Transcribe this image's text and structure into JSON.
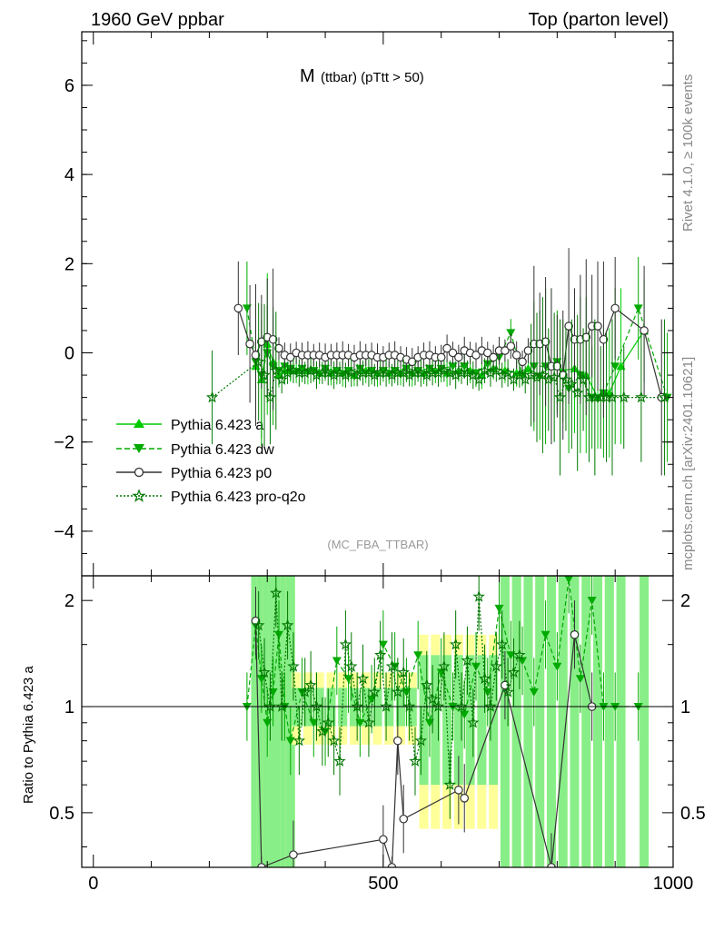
{
  "header": {
    "left": "1960 GeV ppbar",
    "right": "Top (parton level)"
  },
  "side_labels": {
    "rivet": "Rivet 4.1.0, ≥ 100k events",
    "mcplots": "mcplots.cern.ch [arXiv:2401.10621]"
  },
  "chart_data": [
    {
      "type": "line",
      "panel": "main",
      "title_main": "M",
      "title_sub": "(ttbar) (pTtt > 50)",
      "watermark": "(MC_FBA_TTBAR)",
      "xlim": [
        -20,
        1000
      ],
      "ylim": [
        -5,
        7.2
      ],
      "xticks": [
        0,
        500,
        1000
      ],
      "yticks": [
        -4,
        -2,
        0,
        2,
        4,
        6
      ],
      "ytick_labels": [
        "−4",
        "−2",
        "0",
        "2",
        "4",
        "6"
      ],
      "legend_position": "left-center",
      "series": [
        {
          "name": "Pythia 6.423 a",
          "color": "#00cc00",
          "marker": "triangle-up",
          "style": "solid",
          "x": [
            280,
            290,
            300,
            310,
            320,
            330,
            340,
            350,
            370,
            390,
            410,
            430,
            450,
            470,
            490,
            510,
            530,
            550,
            570,
            590,
            610,
            630,
            650,
            670,
            690,
            710,
            730,
            750,
            770,
            790,
            810,
            830,
            850,
            870,
            890,
            910,
            950
          ],
          "y": [
            -0.3,
            -0.6,
            0.2,
            -0.2,
            -0.5,
            -0.4,
            -0.4,
            -0.4,
            -0.4,
            -0.45,
            -0.45,
            -0.45,
            -0.5,
            -0.4,
            -0.45,
            -0.45,
            -0.45,
            -0.45,
            -0.45,
            -0.4,
            -0.45,
            -0.4,
            -0.4,
            -0.5,
            -0.35,
            -0.4,
            -0.45,
            -0.35,
            -0.5,
            -0.3,
            -0.4,
            -0.35,
            -0.5,
            -1.0,
            -0.9,
            -0.3,
            0.5
          ]
        },
        {
          "name": "Pythia 6.423 dw",
          "color": "#00aa00",
          "marker": "triangle-down",
          "style": "dashed",
          "x": [
            265,
            280,
            290,
            300,
            310,
            320,
            330,
            340,
            360,
            380,
            400,
            420,
            440,
            460,
            480,
            500,
            520,
            540,
            560,
            580,
            600,
            620,
            640,
            660,
            680,
            700,
            720,
            740,
            760,
            780,
            800,
            820,
            840,
            860,
            880,
            900,
            940,
            990
          ],
          "y": [
            1.0,
            -0.2,
            -0.5,
            0.0,
            -0.3,
            -0.4,
            -0.3,
            -0.35,
            -0.35,
            -0.4,
            -0.35,
            -0.4,
            -0.4,
            -0.35,
            -0.4,
            -0.4,
            -0.4,
            -0.35,
            -0.4,
            -0.35,
            -0.35,
            -0.3,
            -0.3,
            -0.45,
            -0.25,
            -0.1,
            0.45,
            -0.5,
            -0.3,
            -0.3,
            -0.2,
            -0.8,
            -0.5,
            -1.0,
            -0.9,
            -0.3,
            1.0,
            -1.0
          ]
        },
        {
          "name": "Pythia 6.423 p0",
          "color": "#333333",
          "marker": "circle-open",
          "style": "solid",
          "x": [
            250,
            270,
            280,
            290,
            300,
            310,
            320,
            330,
            340,
            350,
            360,
            370,
            380,
            390,
            400,
            410,
            420,
            430,
            440,
            450,
            460,
            470,
            480,
            490,
            500,
            510,
            520,
            530,
            540,
            550,
            560,
            570,
            580,
            590,
            600,
            610,
            620,
            630,
            640,
            650,
            660,
            670,
            680,
            690,
            700,
            710,
            720,
            730,
            740,
            750,
            760,
            770,
            780,
            790,
            800,
            810,
            820,
            830,
            840,
            850,
            860,
            870,
            880,
            900,
            950,
            980
          ],
          "y": [
            1.0,
            0.2,
            -0.05,
            0.25,
            0.35,
            0.3,
            0.1,
            -0.05,
            -0.1,
            0.0,
            -0.05,
            -0.05,
            -0.05,
            -0.05,
            -0.1,
            -0.05,
            -0.05,
            -0.05,
            -0.05,
            -0.1,
            -0.05,
            -0.05,
            -0.05,
            -0.1,
            -0.1,
            -0.05,
            -0.05,
            -0.1,
            -0.15,
            -0.2,
            -0.1,
            -0.05,
            -0.05,
            -0.1,
            -0.1,
            0.1,
            0.0,
            -0.1,
            0.05,
            0.0,
            -0.05,
            0.05,
            0.0,
            -0.1,
            0.05,
            0.05,
            0.15,
            -0.05,
            -0.2,
            0.05,
            0.2,
            0.2,
            0.25,
            -0.3,
            -0.3,
            -0.5,
            0.6,
            0.3,
            0.3,
            0.35,
            0.6,
            0.6,
            0.3,
            1.0,
            0.5,
            -1.0
          ]
        },
        {
          "name": "Pythia 6.423 pro-q2o",
          "color": "#007700",
          "marker": "star",
          "style": "dotted",
          "x": [
            205,
            285,
            295,
            305,
            315,
            325,
            335,
            345,
            355,
            365,
            375,
            385,
            395,
            405,
            415,
            425,
            435,
            445,
            455,
            465,
            475,
            485,
            495,
            505,
            515,
            525,
            535,
            545,
            555,
            565,
            575,
            585,
            595,
            605,
            615,
            625,
            635,
            645,
            655,
            665,
            675,
            685,
            695,
            705,
            715,
            725,
            735,
            745,
            755,
            765,
            775,
            785,
            795,
            805,
            815,
            825,
            835,
            845,
            855,
            865,
            875,
            885,
            895,
            915,
            945,
            985
          ],
          "y": [
            -1.0,
            -0.2,
            -0.5,
            -1.0,
            -0.4,
            -0.6,
            -0.45,
            -0.4,
            -0.45,
            -0.45,
            -0.4,
            -0.5,
            -0.45,
            -0.45,
            -0.5,
            -0.45,
            -0.5,
            -0.45,
            -0.5,
            -0.45,
            -0.45,
            -0.5,
            -0.45,
            -0.45,
            -0.5,
            -0.45,
            -0.45,
            -0.5,
            -0.45,
            -0.45,
            -0.5,
            -0.45,
            -0.45,
            -0.4,
            -0.45,
            -0.5,
            -0.45,
            -0.45,
            -0.5,
            -0.6,
            -0.4,
            -0.45,
            -0.4,
            -0.5,
            -0.45,
            -0.6,
            -0.5,
            -0.6,
            -0.5,
            -0.55,
            -0.5,
            -0.6,
            -0.55,
            -1.0,
            -0.6,
            -0.7,
            -0.9,
            -0.6,
            -1.0,
            -1.0,
            -1.0,
            -1.0,
            -1.0,
            -1.0,
            -1.0,
            -1.0
          ]
        }
      ]
    },
    {
      "type": "line",
      "panel": "ratio",
      "ylabel": "Ratio to Pythia 6.423 a",
      "xlim": [
        -20,
        1000
      ],
      "ylim": [
        0.35,
        2.35
      ],
      "xticks": [
        0,
        500,
        1000
      ],
      "yticks": [
        0.5,
        1,
        2
      ],
      "ytick_labels": [
        "0.5",
        "1",
        "2"
      ],
      "reference": 1,
      "series": [
        {
          "name": "Pythia 6.423 dw",
          "x": [
            265,
            280,
            290,
            300,
            310,
            320,
            330,
            340,
            360,
            380,
            400,
            420,
            440,
            460,
            480,
            500,
            520,
            540,
            560,
            580,
            600,
            620,
            640,
            660,
            680,
            700,
            720,
            740,
            760,
            780,
            800,
            820,
            840,
            860,
            880,
            900,
            940
          ],
          "y": [
            1.0,
            1.7,
            1.2,
            0.9,
            1.1,
            1.6,
            1.0,
            0.8,
            1.1,
            0.9,
            0.85,
            1.35,
            1.2,
            0.9,
            1.05,
            1.5,
            1.3,
            1.1,
            1.4,
            0.9,
            1.25,
            1.0,
            0.95,
            1.3,
            1.1,
            1.9,
            1.4,
            1.35,
            1.1,
            1.6,
            1.3,
            2.3,
            1.2,
            2.0,
            1.0,
            1.0,
            1.0
          ]
        },
        {
          "name": "Pythia 6.423 p0",
          "x": [
            280,
            290,
            345,
            500,
            515,
            525,
            535,
            630,
            640,
            710,
            790,
            830,
            860
          ],
          "y": [
            1.75,
            0.3,
            0.38,
            0.42,
            0.3,
            0.8,
            0.48,
            0.58,
            0.55,
            1.15,
            0.35,
            1.6,
            1.0
          ]
        },
        {
          "name": "Pythia 6.423 pro-q2o",
          "x": [
            285,
            295,
            305,
            315,
            325,
            335,
            345,
            355,
            365,
            375,
            385,
            395,
            405,
            415,
            425,
            435,
            445,
            455,
            465,
            475,
            485,
            495,
            505,
            515,
            525,
            535,
            545,
            555,
            565,
            575,
            585,
            595,
            605,
            615,
            625,
            635,
            645,
            655,
            665,
            675,
            685,
            695,
            705,
            715,
            725,
            735
          ],
          "y": [
            1.7,
            1.25,
            1.0,
            2.1,
            1.0,
            1.7,
            1.3,
            0.8,
            1.1,
            1.15,
            1.0,
            0.85,
            0.9,
            0.8,
            0.7,
            1.5,
            1.3,
            1.0,
            1.2,
            0.9,
            1.1,
            1.4,
            1.0,
            1.3,
            1.1,
            1.25,
            1.0,
            0.7,
            0.8,
            1.15,
            1.05,
            1.0,
            1.3,
            0.6,
            1.5,
            1.0,
            1.35,
            0.9,
            2.05,
            1.2,
            1.0,
            1.3,
            1.5,
            1.1,
            1.25,
            1.4
          ]
        }
      ]
    }
  ]
}
